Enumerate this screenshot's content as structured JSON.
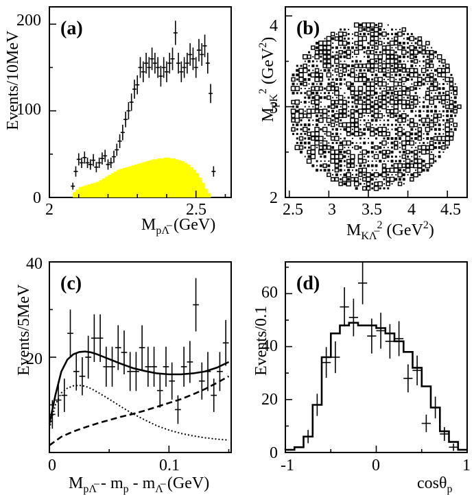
{
  "chart_data": [
    {
      "panel_label": "(a)",
      "type": "bar",
      "xlabel": "M",
      "xlabel_sub": "pΛ̅",
      "xlabel_unit": " (GeV)",
      "ylabel": "Events/10MeV",
      "xlim": [
        2.0,
        2.62
      ],
      "ylim": [
        0,
        220
      ],
      "xticks": [
        "2",
        "2.5"
      ],
      "xtick_values": [
        2.0,
        2.5
      ],
      "yticks": [
        "0",
        "100",
        "200"
      ],
      "ytick_values": [
        0,
        100,
        200
      ],
      "background_color": "#ffff00",
      "background": {
        "x_start": 2.08,
        "bin_width": 0.01,
        "values": [
          6,
          9,
          12,
          13,
          14,
          15,
          16,
          17,
          18,
          20,
          22,
          24,
          26,
          28,
          30,
          32,
          33,
          34,
          35,
          36,
          37,
          38,
          39,
          40,
          41,
          42,
          43,
          44,
          44,
          45,
          45,
          46,
          46,
          45,
          45,
          44,
          43,
          42,
          40,
          38,
          35,
          32,
          28,
          23,
          17,
          10,
          5
        ]
      },
      "points": {
        "x": [
          2.0,
          2.01,
          2.02,
          2.03,
          2.04,
          2.05,
          2.06,
          2.07,
          2.08,
          2.09,
          2.1,
          2.11,
          2.12,
          2.13,
          2.14,
          2.15,
          2.16,
          2.17,
          2.18,
          2.19,
          2.2,
          2.21,
          2.22,
          2.23,
          2.24,
          2.25,
          2.26,
          2.27,
          2.28,
          2.29,
          2.3,
          2.31,
          2.32,
          2.33,
          2.34,
          2.35,
          2.36,
          2.37,
          2.38,
          2.39,
          2.4,
          2.41,
          2.42,
          2.43,
          2.44,
          2.45,
          2.46,
          2.47,
          2.48,
          2.49,
          2.5,
          2.51,
          2.52,
          2.53,
          2.54,
          2.55,
          2.56,
          2.57,
          2.58,
          2.59
        ],
        "y": [
          0,
          0,
          0,
          0,
          0,
          0,
          0,
          0,
          13,
          30,
          44,
          40,
          46,
          40,
          38,
          43,
          35,
          40,
          45,
          48,
          38,
          40,
          47,
          55,
          65,
          75,
          90,
          100,
          110,
          125,
          130,
          150,
          145,
          155,
          150,
          160,
          155,
          150,
          140,
          150,
          145,
          155,
          160,
          190,
          155,
          145,
          150,
          155,
          165,
          160,
          150,
          170,
          165,
          175,
          155,
          120,
          30,
          0,
          0,
          0
        ],
        "err": [
          0,
          0,
          0,
          0,
          0,
          0,
          0,
          0,
          4,
          6,
          7,
          6,
          7,
          6,
          6,
          7,
          6,
          6,
          7,
          7,
          6,
          6,
          7,
          7,
          8,
          9,
          9,
          10,
          10,
          11,
          11,
          12,
          12,
          12,
          12,
          13,
          12,
          12,
          12,
          12,
          12,
          12,
          13,
          14,
          12,
          12,
          12,
          12,
          13,
          13,
          12,
          13,
          13,
          13,
          12,
          11,
          6,
          0,
          0,
          0
        ]
      }
    },
    {
      "panel_label": "(b)",
      "type": "scatter",
      "xlabel": "M",
      "xlabel_sub": "KΛ̅",
      "xlabel_sup": "2",
      "xlabel_unit": " (GeV",
      "xlabel_unit_sup": "2",
      "xlabel_close": ")",
      "ylabel": "M",
      "ylabel_sub": "pK",
      "ylabel_sup": "2",
      "ylabel_unit": " (GeV",
      "ylabel_unit_sup": "2",
      "ylabel_close": ")",
      "xlim": [
        2.45,
        4.75
      ],
      "ylim": [
        2.0,
        4.1
      ],
      "xticks": [
        "2.5",
        "3",
        "3.5",
        "4",
        "4.5"
      ],
      "xtick_values": [
        2.5,
        3.0,
        3.5,
        4.0,
        4.5
      ],
      "yticks": [
        "2",
        "3",
        "4"
      ],
      "ytick_values": [
        2.0,
        3.0,
        4.0
      ],
      "dalitz_region": {
        "center_x": 3.55,
        "center_y": 3.0,
        "radius_x": 1.1,
        "radius_y": 0.92
      }
    },
    {
      "panel_label": "(c)",
      "type": "line",
      "xlabel": "M",
      "xlabel_sub": "pΛ̅",
      "xlabel_mid": " - m",
      "xlabel_sub2": "p",
      "xlabel_mid2": " - m",
      "xlabel_sub3": "Λ̅",
      "xlabel_unit": " (GeV)",
      "ylabel": "Events/5MeV",
      "xlim": [
        0.0,
        0.152
      ],
      "ylim": [
        0,
        40
      ],
      "xticks": [
        "0",
        "0.1"
      ],
      "xtick_values": [
        0.0,
        0.1
      ],
      "yticks": [
        "20",
        "40"
      ],
      "ytick_values": [
        20,
        40
      ],
      "points": {
        "x": [
          0.0025,
          0.0075,
          0.0125,
          0.0175,
          0.0225,
          0.0275,
          0.0325,
          0.0375,
          0.0425,
          0.0475,
          0.0525,
          0.0575,
          0.0625,
          0.0675,
          0.0725,
          0.0775,
          0.0825,
          0.0875,
          0.0925,
          0.0975,
          0.1025,
          0.1075,
          0.1125,
          0.1175,
          0.1225,
          0.1275,
          0.1325,
          0.1375,
          0.1425,
          0.1475
        ],
        "y": [
          8,
          11,
          12,
          25,
          17,
          16,
          20,
          24,
          24,
          18,
          18,
          22,
          21,
          17,
          17,
          22,
          18,
          18,
          13,
          18,
          15,
          9,
          18,
          19,
          31,
          15,
          17,
          12,
          17,
          23
        ],
        "err": [
          3,
          3.5,
          3.5,
          5,
          4,
          4,
          4.5,
          5,
          5,
          4.2,
          4.2,
          4.7,
          4.6,
          4.1,
          4.1,
          4.7,
          4.2,
          4.2,
          3.6,
          4.2,
          3.9,
          3,
          4.2,
          4.4,
          5.6,
          3.9,
          4.1,
          3.5,
          4.1,
          4.8
        ]
      },
      "curves": [
        {
          "style": "solid",
          "x": [
            0.0,
            0.005,
            0.01,
            0.015,
            0.02,
            0.025,
            0.03,
            0.035,
            0.04,
            0.05,
            0.06,
            0.07,
            0.08,
            0.09,
            0.1,
            0.11,
            0.12,
            0.13,
            0.14,
            0.15
          ],
          "y": [
            6,
            12,
            17,
            19.5,
            20.6,
            21.1,
            21.2,
            21.0,
            20.6,
            19.6,
            18.6,
            17.7,
            17.1,
            16.6,
            16.4,
            16.4,
            16.6,
            17.0,
            17.8,
            19.0
          ]
        },
        {
          "style": "dotted",
          "x": [
            0.0,
            0.005,
            0.01,
            0.015,
            0.02,
            0.025,
            0.03,
            0.035,
            0.04,
            0.05,
            0.06,
            0.07,
            0.08,
            0.09,
            0.1,
            0.11,
            0.12,
            0.13,
            0.14,
            0.15
          ],
          "y": [
            5,
            10,
            12.5,
            13.5,
            14.0,
            14.1,
            13.9,
            13.4,
            12.7,
            11.2,
            9.6,
            8.1,
            6.8,
            5.6,
            4.7,
            4.0,
            3.5,
            3.1,
            2.8,
            2.6
          ]
        },
        {
          "style": "dashed",
          "x": [
            0.0,
            0.01,
            0.02,
            0.03,
            0.04,
            0.05,
            0.06,
            0.07,
            0.08,
            0.09,
            0.1,
            0.11,
            0.12,
            0.13,
            0.14,
            0.15
          ],
          "y": [
            1.5,
            3.3,
            4.4,
            5.3,
            6.1,
            6.8,
            7.5,
            8.1,
            8.8,
            9.6,
            10.4,
            11.2,
            12.2,
            13.3,
            14.6,
            16.0
          ]
        }
      ]
    },
    {
      "panel_label": "(d)",
      "type": "line",
      "xlabel": "cosθ",
      "xlabel_sub": "p",
      "ylabel": "Events/0.1",
      "xlim": [
        -1.0,
        1.0
      ],
      "ylim": [
        0,
        72
      ],
      "xticks": [
        "-1",
        "0",
        "1"
      ],
      "xtick_values": [
        -1.0,
        0.0,
        1.0
      ],
      "yticks": [
        "0",
        "20",
        "40",
        "60"
      ],
      "ytick_values": [
        0,
        20,
        40,
        60
      ],
      "histogram": {
        "edges": [
          -1.0,
          -0.9,
          -0.8,
          -0.7,
          -0.6,
          -0.5,
          -0.4,
          -0.3,
          -0.2,
          -0.1,
          0.0,
          0.1,
          0.2,
          0.3,
          0.4,
          0.5,
          0.6,
          0.7,
          0.8,
          0.9,
          1.0
        ],
        "values": [
          1,
          2,
          6,
          18,
          36,
          45,
          48,
          49,
          48,
          48,
          47,
          45,
          42,
          38,
          32,
          25,
          17,
          8,
          4,
          1
        ]
      },
      "points": {
        "x": [
          -0.75,
          -0.65,
          -0.55,
          -0.45,
          -0.35,
          -0.25,
          -0.15,
          -0.05,
          0.05,
          0.15,
          0.25,
          0.35,
          0.45,
          0.55,
          0.65,
          0.75,
          0.85
        ],
        "y": [
          6,
          18,
          34,
          36,
          55,
          51,
          64,
          44,
          46,
          42,
          43,
          28,
          31,
          11,
          17,
          7,
          2
        ],
        "err": [
          2.5,
          4.2,
          5.8,
          6,
          7.4,
          7.1,
          8,
          6.6,
          6.8,
          6.5,
          6.6,
          5.3,
          5.6,
          3.3,
          4.1,
          2.6,
          1.4
        ]
      }
    }
  ]
}
